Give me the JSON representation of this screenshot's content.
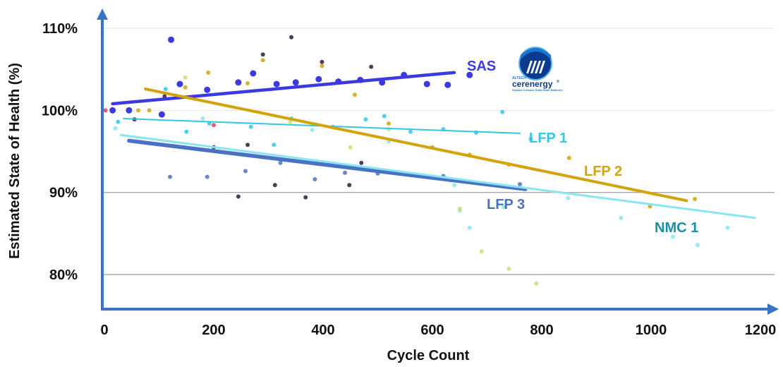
{
  "chart_data": {
    "type": "scatter",
    "title": "",
    "xlabel": "Cycle Count",
    "ylabel": "Estimated State of Health (%)",
    "xlim": [
      0,
      1200
    ],
    "ylim": [
      75,
      111
    ],
    "x_ticks": [
      {
        "value": 0,
        "label": "0"
      },
      {
        "value": 200,
        "label": "200"
      },
      {
        "value": 400,
        "label": "400"
      },
      {
        "value": 600,
        "label": "600"
      },
      {
        "value": 800,
        "label": "800"
      },
      {
        "value": 1000,
        "label": "1000"
      },
      {
        "value": 1200,
        "label": "1200"
      }
    ],
    "y_ticks": [
      {
        "value": 80,
        "label": "80%"
      },
      {
        "value": 90,
        "label": "90%"
      },
      {
        "value": 100,
        "label": "100%"
      },
      {
        "value": 110,
        "label": "110%"
      }
    ],
    "gridlines_y": [
      80,
      90,
      100,
      110
    ],
    "series": [
      {
        "name": "SAS",
        "color": "#3a3ae0",
        "trend": {
          "x": [
            15,
            640
          ],
          "y": [
            100.8,
            104.6
          ]
        },
        "points": [
          {
            "x": 15,
            "y": 100.0
          },
          {
            "x": 45,
            "y": 100.0
          },
          {
            "x": 105,
            "y": 99.5
          },
          {
            "x": 122,
            "y": 108.6
          },
          {
            "x": 138,
            "y": 103.2
          },
          {
            "x": 188,
            "y": 102.5
          },
          {
            "x": 245,
            "y": 103.4
          },
          {
            "x": 272,
            "y": 104.5
          },
          {
            "x": 315,
            "y": 103.2
          },
          {
            "x": 350,
            "y": 103.4
          },
          {
            "x": 392,
            "y": 103.8
          },
          {
            "x": 428,
            "y": 103.5
          },
          {
            "x": 468,
            "y": 103.7
          },
          {
            "x": 508,
            "y": 103.4
          },
          {
            "x": 548,
            "y": 104.3
          },
          {
            "x": 590,
            "y": 103.2
          },
          {
            "x": 628,
            "y": 103.1
          },
          {
            "x": 668,
            "y": 104.3
          }
        ]
      },
      {
        "name": "LFP 1",
        "color": "#30c8e6",
        "trend": {
          "x": [
            35,
            760
          ],
          "y": [
            99.0,
            97.2
          ]
        },
        "points": [
          {
            "x": 25,
            "y": 98.6
          },
          {
            "x": 112,
            "y": 102.6
          },
          {
            "x": 150,
            "y": 97.4
          },
          {
            "x": 192,
            "y": 98.4
          },
          {
            "x": 268,
            "y": 98.0
          },
          {
            "x": 310,
            "y": 95.8
          },
          {
            "x": 342,
            "y": 99.0
          },
          {
            "x": 418,
            "y": 98.0
          },
          {
            "x": 478,
            "y": 98.9
          },
          {
            "x": 512,
            "y": 99.3
          },
          {
            "x": 560,
            "y": 97.4
          },
          {
            "x": 620,
            "y": 97.7
          },
          {
            "x": 680,
            "y": 97.3
          },
          {
            "x": 728,
            "y": 99.8
          },
          {
            "x": 780,
            "y": 96.5
          }
        ]
      },
      {
        "name": "LFP 2",
        "color": "#d4a20a",
        "trend": {
          "x": [
            75,
            1065
          ],
          "y": [
            102.6,
            89.0
          ]
        },
        "points": [
          {
            "x": 62,
            "y": 100.0
          },
          {
            "x": 82,
            "y": 100.0
          },
          {
            "x": 148,
            "y": 102.8
          },
          {
            "x": 190,
            "y": 104.6
          },
          {
            "x": 262,
            "y": 103.3
          },
          {
            "x": 290,
            "y": 106.1
          },
          {
            "x": 398,
            "y": 105.4
          },
          {
            "x": 458,
            "y": 101.9
          },
          {
            "x": 520,
            "y": 98.4
          },
          {
            "x": 600,
            "y": 95.5
          },
          {
            "x": 668,
            "y": 94.6
          },
          {
            "x": 740,
            "y": 93.4
          },
          {
            "x": 850,
            "y": 94.2
          },
          {
            "x": 998,
            "y": 88.3
          },
          {
            "x": 1080,
            "y": 89.2
          }
        ]
      },
      {
        "name": "LFP 3",
        "color": "#4a72c4",
        "trend": {
          "x": [
            45,
            770
          ],
          "y": [
            96.3,
            90.4
          ]
        },
        "points": [
          {
            "x": 120,
            "y": 91.9
          },
          {
            "x": 188,
            "y": 91.9
          },
          {
            "x": 258,
            "y": 92.6
          },
          {
            "x": 322,
            "y": 93.6
          },
          {
            "x": 385,
            "y": 91.6
          },
          {
            "x": 440,
            "y": 92.4
          },
          {
            "x": 500,
            "y": 92.3
          },
          {
            "x": 620,
            "y": 92.0
          },
          {
            "x": 760,
            "y": 91.0
          }
        ]
      },
      {
        "name": "NMC 1",
        "color": "#88e6f4",
        "trend": {
          "x": [
            30,
            1190
          ],
          "y": [
            97.0,
            86.9
          ]
        },
        "points": [
          {
            "x": 20,
            "y": 97.8
          },
          {
            "x": 180,
            "y": 99.0
          },
          {
            "x": 380,
            "y": 97.6
          },
          {
            "x": 520,
            "y": 96.2
          },
          {
            "x": 640,
            "y": 90.9
          },
          {
            "x": 650,
            "y": 87.8
          },
          {
            "x": 668,
            "y": 85.7
          },
          {
            "x": 730,
            "y": 88.2
          },
          {
            "x": 848,
            "y": 89.3
          },
          {
            "x": 945,
            "y": 86.9
          },
          {
            "x": 1040,
            "y": 84.6
          },
          {
            "x": 1085,
            "y": 83.6
          },
          {
            "x": 1140,
            "y": 85.7
          }
        ]
      },
      {
        "name": "",
        "color": "#34173e",
        "points": [
          {
            "x": 55,
            "y": 98.9
          },
          {
            "x": 110,
            "y": 101.7
          },
          {
            "x": 200,
            "y": 95.5
          },
          {
            "x": 245,
            "y": 89.5
          },
          {
            "x": 262,
            "y": 95.8
          },
          {
            "x": 290,
            "y": 106.8
          },
          {
            "x": 312,
            "y": 90.9
          },
          {
            "x": 342,
            "y": 108.9
          },
          {
            "x": 368,
            "y": 89.4
          },
          {
            "x": 398,
            "y": 105.9
          },
          {
            "x": 448,
            "y": 90.9
          },
          {
            "x": 470,
            "y": 93.6
          },
          {
            "x": 488,
            "y": 105.3
          }
        ]
      },
      {
        "name": "",
        "color": "#c8e070",
        "points": [
          {
            "x": 148,
            "y": 104.0
          },
          {
            "x": 340,
            "y": 98.6
          },
          {
            "x": 450,
            "y": 95.5
          },
          {
            "x": 520,
            "y": 97.7
          },
          {
            "x": 650,
            "y": 88.0
          },
          {
            "x": 690,
            "y": 82.8
          },
          {
            "x": 740,
            "y": 80.7
          },
          {
            "x": 790,
            "y": 78.9
          }
        ]
      },
      {
        "name": "",
        "color": "#e83a5a",
        "points": [
          {
            "x": 2,
            "y": 100.0
          },
          {
            "x": 200,
            "y": 98.2
          }
        ]
      }
    ],
    "labels": {
      "SAS": "SAS",
      "LFP1": "LFP 1",
      "LFP2": "LFP 2",
      "LFP3": "LFP 3",
      "NMC1": "NMC 1"
    }
  },
  "logo": {
    "brand": "cerenergy",
    "registered": "®",
    "prefix": "ALTECH",
    "tagline": "Sodium Ceramic Solid State Batteries",
    "colors": {
      "navy": "#0b3b8c",
      "blue": "#1a78d2",
      "light": "#5fb4f0"
    }
  }
}
